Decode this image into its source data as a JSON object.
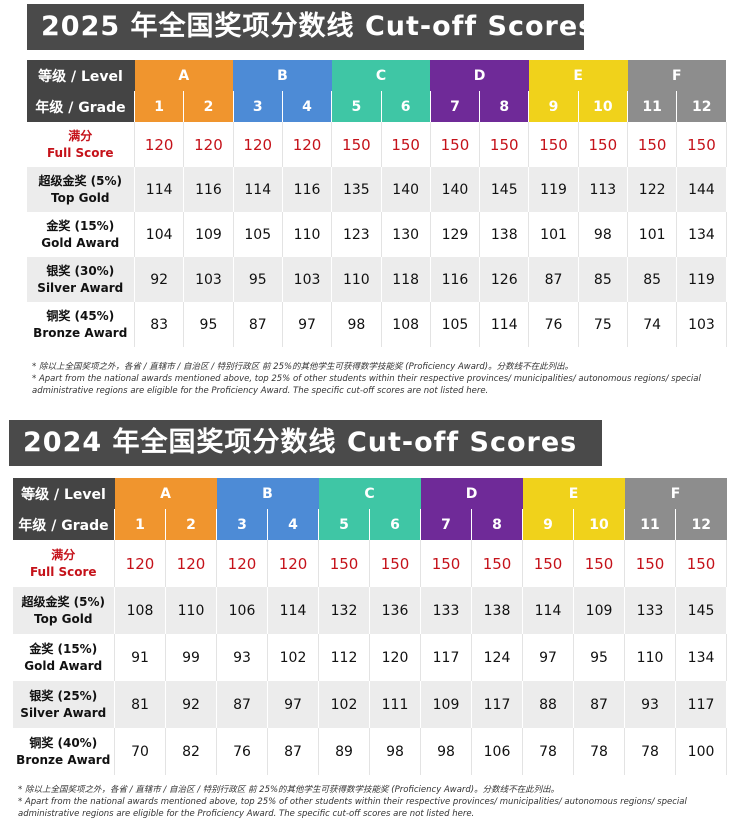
{
  "headers": {
    "level_label": "等级 / Level",
    "grade_label": "年级 / Grade",
    "levels": [
      "A",
      "B",
      "C",
      "D",
      "E",
      "F"
    ],
    "grades": [
      "1",
      "2",
      "3",
      "4",
      "5",
      "6",
      "7",
      "8",
      "9",
      "10",
      "11",
      "12"
    ]
  },
  "colors": {
    "A": "#f0952e",
    "B": "#4d8bd6",
    "C": "#3fc6a5",
    "D": "#6f2a98",
    "E": "#f0d21b",
    "F": "#8d8d8d",
    "full_score_text": "#c5121a",
    "title_bar": "#4a4a4a"
  },
  "note_cn": "* 除以上全国奖项之外，各省 / 直辖市 / 自治区 / 特别行政区 前 25%的其他学生可获得数学技能奖 (Proficiency Award)。分数线不在此列出。",
  "note_en": "* Apart from the national awards mentioned above, top 25% of other students within their respective provinces/ municipalities/ autonomous regions/ special administrative regions are eligible for the Proficiency Award. The specific cut-off scores are not listed here.",
  "tables": [
    {
      "title": "2025 年全国奖项分数线 Cut-off Scores",
      "rows": [
        {
          "cn": "满分",
          "en": "Full Score",
          "values": [
            120,
            120,
            120,
            120,
            150,
            150,
            150,
            150,
            150,
            150,
            150,
            150
          ]
        },
        {
          "cn": "超级金奖 (5%)",
          "en": "Top Gold",
          "values": [
            114,
            116,
            114,
            116,
            135,
            140,
            140,
            145,
            119,
            113,
            122,
            144
          ]
        },
        {
          "cn": "金奖 (15%)",
          "en": "Gold Award",
          "values": [
            104,
            109,
            105,
            110,
            123,
            130,
            129,
            138,
            101,
            98,
            101,
            134
          ]
        },
        {
          "cn": "银奖 (30%)",
          "en": "Silver Award",
          "values": [
            92,
            103,
            95,
            103,
            110,
            118,
            116,
            126,
            87,
            85,
            85,
            119
          ]
        },
        {
          "cn": "铜奖 (45%)",
          "en": "Bronze Award",
          "values": [
            83,
            95,
            87,
            97,
            98,
            108,
            105,
            114,
            76,
            75,
            74,
            103
          ]
        }
      ]
    },
    {
      "title": "2024 年全国奖项分数线 Cut-off Scores",
      "rows": [
        {
          "cn": "满分",
          "en": "Full Score",
          "values": [
            120,
            120,
            120,
            120,
            150,
            150,
            150,
            150,
            150,
            150,
            150,
            150
          ]
        },
        {
          "cn": "超级金奖 (5%)",
          "en": "Top Gold",
          "values": [
            108,
            110,
            106,
            114,
            132,
            136,
            133,
            138,
            114,
            109,
            133,
            145
          ]
        },
        {
          "cn": "金奖 (15%)",
          "en": "Gold Award",
          "values": [
            91,
            99,
            93,
            102,
            112,
            120,
            117,
            124,
            97,
            95,
            110,
            134
          ]
        },
        {
          "cn": "银奖 (25%)",
          "en": "Silver Award",
          "values": [
            81,
            92,
            87,
            97,
            102,
            111,
            109,
            117,
            88,
            87,
            93,
            117
          ]
        },
        {
          "cn": "铜奖 (40%)",
          "en": "Bronze Award",
          "values": [
            70,
            82,
            76,
            87,
            89,
            98,
            98,
            106,
            78,
            78,
            78,
            100
          ]
        }
      ]
    }
  ]
}
